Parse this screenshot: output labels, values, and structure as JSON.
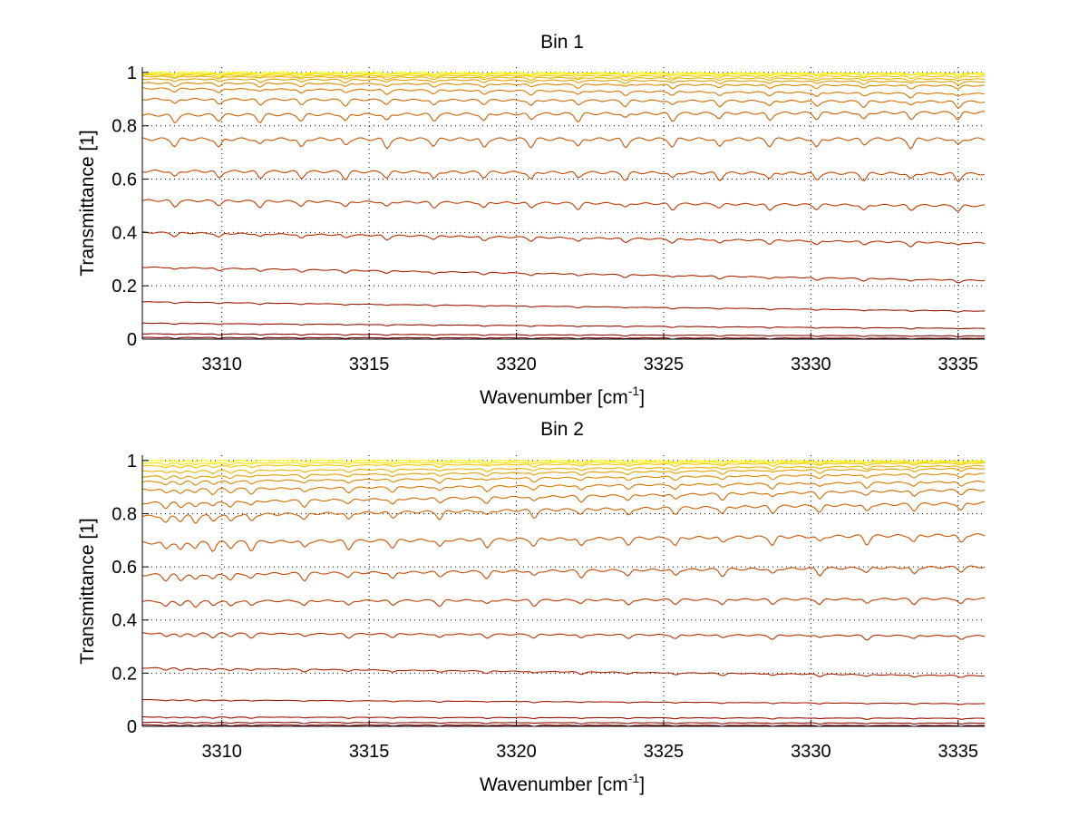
{
  "chart_data": [
    {
      "type": "line",
      "title": "Bin 1",
      "xlabel": "Wavenumber [cm",
      "xlabel_sup": "-1",
      "xlabel_end": "]",
      "ylabel": "Transmittance [1]",
      "xlim": [
        3307.3,
        3335.9
      ],
      "ylim": [
        0,
        1.02
      ],
      "xticks": [
        3310,
        3315,
        3320,
        3325,
        3330,
        3335
      ],
      "xtick_labels": [
        "3310",
        "3315",
        "3320",
        "3325",
        "3330",
        "3335"
      ],
      "yticks": [
        0,
        0.2,
        0.4,
        0.6,
        0.8,
        1
      ],
      "ytick_labels": [
        "0",
        "0.2",
        "0.4",
        "0.6",
        "0.8",
        "1"
      ],
      "grid": true,
      "absorption_lines": [
        3308.4,
        3309.9,
        3311.3,
        3312.7,
        3314.2,
        3315.6,
        3317.2,
        3318.9,
        3320.5,
        3322.1,
        3323.7,
        3325.3,
        3326.9,
        3328.6,
        3330.2,
        3331.8,
        3333.4,
        3335.0
      ],
      "series": [
        {
          "start": 1.0,
          "end": 0.997,
          "color": "#ffff00"
        },
        {
          "start": 0.995,
          "end": 0.993,
          "color": "#f5e400"
        },
        {
          "start": 0.99,
          "end": 0.985,
          "color": "#f0c800"
        },
        {
          "start": 0.985,
          "end": 0.975,
          "color": "#e8b400"
        },
        {
          "start": 0.975,
          "end": 0.965,
          "color": "#e0a000"
        },
        {
          "start": 0.96,
          "end": 0.95,
          "color": "#d98a00"
        },
        {
          "start": 0.94,
          "end": 0.92,
          "color": "#d67800"
        },
        {
          "start": 0.9,
          "end": 0.89,
          "color": "#d06800"
        },
        {
          "start": 0.84,
          "end": 0.85,
          "color": "#cc6000"
        },
        {
          "start": 0.75,
          "end": 0.75,
          "color": "#c85400"
        },
        {
          "start": 0.63,
          "end": 0.62,
          "color": "#c24800"
        },
        {
          "start": 0.52,
          "end": 0.5,
          "color": "#bc3c00"
        },
        {
          "start": 0.4,
          "end": 0.36,
          "color": "#b43000"
        },
        {
          "start": 0.27,
          "end": 0.22,
          "color": "#aa2400"
        },
        {
          "start": 0.14,
          "end": 0.105,
          "color": "#a01800"
        },
        {
          "start": 0.06,
          "end": 0.04,
          "color": "#961000"
        },
        {
          "start": 0.02,
          "end": 0.012,
          "color": "#8c0800"
        },
        {
          "start": 0.006,
          "end": 0.003,
          "color": "#820000"
        }
      ]
    },
    {
      "type": "line",
      "title": "Bin 2",
      "xlabel": "Wavenumber [cm",
      "xlabel_sup": "-1",
      "xlabel_end": "]",
      "ylabel": "Transmittance [1]",
      "xlim": [
        3307.3,
        3335.9
      ],
      "ylim": [
        0,
        1.02
      ],
      "xticks": [
        3310,
        3315,
        3320,
        3325,
        3330,
        3335
      ],
      "xtick_labels": [
        "3310",
        "3315",
        "3320",
        "3325",
        "3330",
        "3335"
      ],
      "yticks": [
        0,
        0.2,
        0.4,
        0.6,
        0.8,
        1
      ],
      "ytick_labels": [
        "0",
        "0.2",
        "0.4",
        "0.6",
        "0.8",
        "1"
      ],
      "grid": true,
      "absorption_lines": [
        3308.1,
        3308.6,
        3309.1,
        3309.7,
        3310.3,
        3311.0,
        3312.8,
        3314.3,
        3315.8,
        3317.4,
        3319.0,
        3320.6,
        3322.2,
        3323.8,
        3325.4,
        3327.0,
        3328.7,
        3330.3,
        3331.9,
        3333.5,
        3335.1
      ],
      "series": [
        {
          "start": 1.0,
          "end": 0.998,
          "color": "#ffff00"
        },
        {
          "start": 0.99,
          "end": 0.995,
          "color": "#f5e400"
        },
        {
          "start": 0.98,
          "end": 0.99,
          "color": "#f0c800"
        },
        {
          "start": 0.96,
          "end": 0.98,
          "color": "#e8b400"
        },
        {
          "start": 0.94,
          "end": 0.97,
          "color": "#e0a000"
        },
        {
          "start": 0.92,
          "end": 0.95,
          "color": "#d98a00"
        },
        {
          "start": 0.89,
          "end": 0.92,
          "color": "#d67800"
        },
        {
          "start": 0.84,
          "end": 0.89,
          "color": "#d06800"
        },
        {
          "start": 0.79,
          "end": 0.84,
          "color": "#cc6000"
        },
        {
          "start": 0.69,
          "end": 0.72,
          "color": "#c85400"
        },
        {
          "start": 0.57,
          "end": 0.6,
          "color": "#c24800"
        },
        {
          "start": 0.47,
          "end": 0.48,
          "color": "#bc3c00"
        },
        {
          "start": 0.35,
          "end": 0.34,
          "color": "#b43000"
        },
        {
          "start": 0.22,
          "end": 0.19,
          "color": "#aa2400"
        },
        {
          "start": 0.1,
          "end": 0.085,
          "color": "#a01800"
        },
        {
          "start": 0.035,
          "end": 0.03,
          "color": "#961000"
        },
        {
          "start": 0.015,
          "end": 0.012,
          "color": "#8c0800"
        },
        {
          "start": 0.005,
          "end": 0.003,
          "color": "#820000"
        }
      ]
    }
  ]
}
